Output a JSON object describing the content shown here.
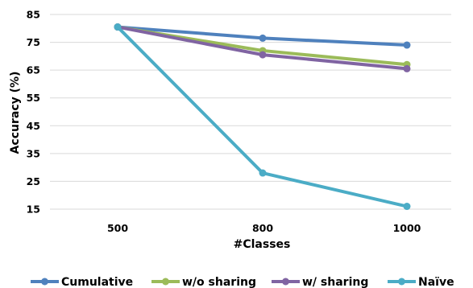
{
  "chart_data": {
    "type": "line",
    "xlabel": "#Classes",
    "ylabel": "Accuracy (%)",
    "categories": [
      "500",
      "800",
      "1000"
    ],
    "ylim": [
      15,
      85
    ],
    "yticks": [
      15,
      25,
      35,
      45,
      55,
      65,
      75,
      85
    ],
    "grid": true,
    "legend_position": "bottom",
    "series": [
      {
        "name": "Cumulative",
        "color": "#4F81BD",
        "values": [
          80.5,
          76.5,
          74
        ]
      },
      {
        "name": "w/o sharing",
        "color": "#9BBB59",
        "values": [
          80.5,
          72,
          67
        ]
      },
      {
        "name": "w/ sharing",
        "color": "#8064A2",
        "values": [
          80.5,
          70.5,
          65.5
        ]
      },
      {
        "name": "Naïve",
        "color": "#4BACC6",
        "values": [
          80.5,
          28,
          16
        ]
      }
    ]
  }
}
